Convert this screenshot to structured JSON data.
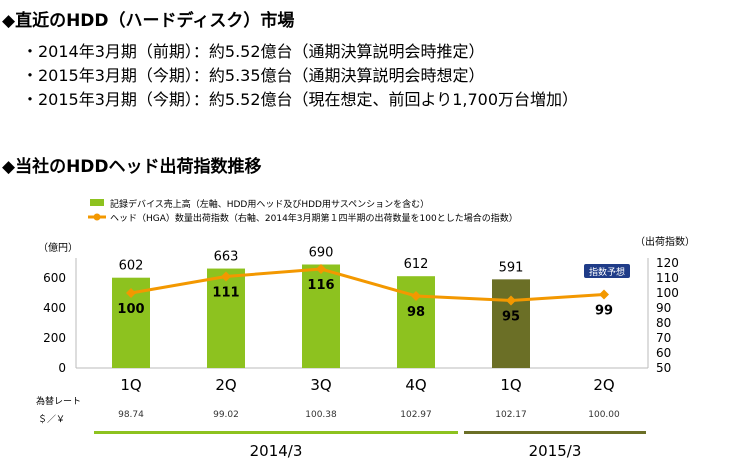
{
  "section1": {
    "title": "◆直近のHDD（ハードディスク）市場",
    "bullets": [
      "・2014年3月期（前期）：約5.52億台（通期決算説明会時推定）",
      "・2015年3月期（今期）：約5.35億台（通期決算説明会時想定）",
      "・2015年3月期（今期）：約5.52億台（現在想定、前回より1,700万台増加）"
    ]
  },
  "section2": {
    "title": "◆当社のHDDヘッド出荷指数推移"
  },
  "chart_data": {
    "type": "bar+line",
    "legend": [
      {
        "label": "記録デバイス売上高（左軸、HDD用ヘッド及びHDD用サスペンションを含む）",
        "color": "#8dc21f"
      },
      {
        "label": "ヘッド（HGA）数量出荷指数（右軸、2014年3月期第１四半期の出荷数量を100とした場合の指数）",
        "color": "#f39800"
      }
    ],
    "categories": [
      "1Q",
      "2Q",
      "3Q",
      "4Q",
      "1Q",
      "2Q"
    ],
    "bars": [
      602,
      663,
      690,
      612,
      591,
      null
    ],
    "bar_colors": [
      "#8dc21f",
      "#8dc21f",
      "#8dc21f",
      "#8dc21f",
      "#6b6f26",
      null
    ],
    "line": [
      100,
      111,
      116,
      98,
      95,
      99
    ],
    "left_axis": {
      "unit": "（億円）",
      "ticks": [
        0,
        200,
        400,
        600
      ],
      "ylim": [
        0,
        700
      ]
    },
    "right_axis": {
      "unit": "（出荷指数）",
      "ticks": [
        50,
        60,
        70,
        80,
        90,
        100,
        110,
        120
      ],
      "ylim": [
        50,
        120
      ]
    },
    "forecast_badge": {
      "text": "指数予想",
      "color": "#1f3c88"
    },
    "rate_label_1": "為替レート",
    "rate_label_2": "＄／￥",
    "rates": [
      "98.74",
      "99.02",
      "100.38",
      "102.97",
      "102.17",
      "100.00"
    ],
    "periods": [
      {
        "label": "2014/3",
        "color": "#8dc21f"
      },
      {
        "label": "2015/3",
        "color": "#6b6f26"
      }
    ],
    "line_color": "#f39800"
  }
}
